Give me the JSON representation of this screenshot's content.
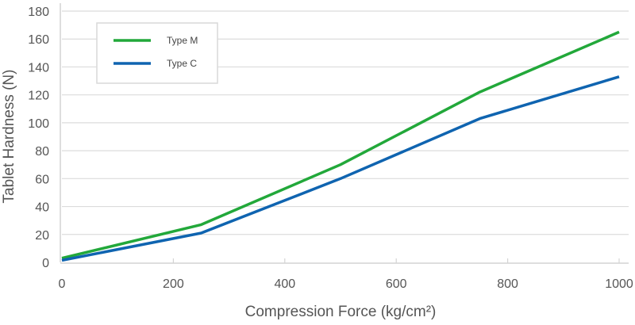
{
  "chart_data": {
    "type": "line",
    "title": "",
    "xlabel": "Compression Force (kg/cm²)",
    "ylabel": "Tablet Hardness (N)",
    "x": [
      0,
      250,
      500,
      750,
      1000
    ],
    "series": [
      {
        "name": "Type M",
        "color": "#22a83a",
        "values": [
          3,
          27,
          70,
          122,
          165
        ]
      },
      {
        "name": "Type C",
        "color": "#0f64b0",
        "values": [
          1.5,
          21,
          60,
          103,
          133
        ]
      }
    ],
    "xlim": [
      0,
      1000
    ],
    "ylim": [
      0,
      180
    ],
    "xticks": [
      0,
      200,
      400,
      600,
      800,
      1000
    ],
    "yticks": [
      0,
      20,
      40,
      60,
      80,
      100,
      120,
      140,
      160,
      180
    ],
    "grid": {
      "horizontal": true,
      "vertical": false
    },
    "legend": {
      "position": "upper-left-inset",
      "entries": [
        "Type M",
        "Type C"
      ]
    }
  },
  "axes": {
    "xlabel": "Compression Force (kg/cm²)",
    "ylabel": "Tablet Hardness (N)"
  },
  "legend": {
    "items": [
      {
        "label": "Type M",
        "color": "#22a83a"
      },
      {
        "label": "Type C",
        "color": "#0f64b0"
      }
    ]
  }
}
